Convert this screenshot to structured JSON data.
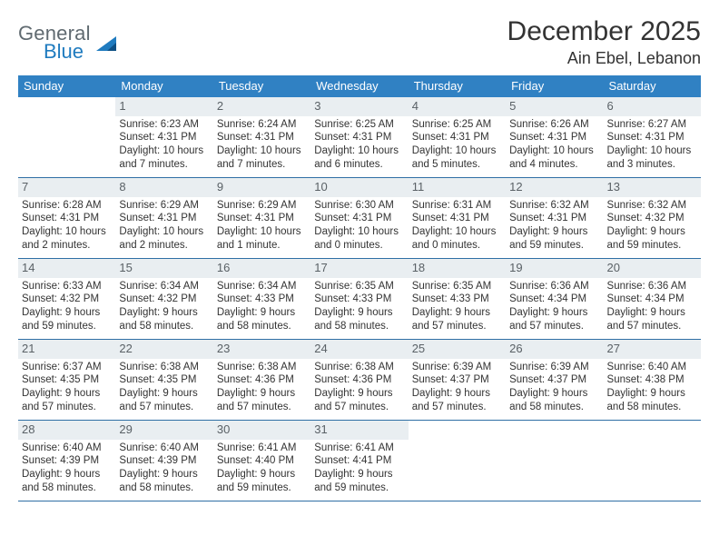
{
  "logo": {
    "text_general": "General",
    "text_blue": "Blue",
    "general_color": "#606a70",
    "blue_color": "#1f7bbf"
  },
  "title": "December 2025",
  "location": "Ain Ebel, Lebanon",
  "header_bg": "#3081c3",
  "header_fg": "#ffffff",
  "daynum_bg": "#e9eef1",
  "row_border_color": "#2f6fa5",
  "columns": [
    "Sunday",
    "Monday",
    "Tuesday",
    "Wednesday",
    "Thursday",
    "Friday",
    "Saturday"
  ],
  "weeks": [
    [
      {
        "n": "",
        "sunrise": "",
        "sunset": "",
        "daylight": ""
      },
      {
        "n": "1",
        "sunrise": "Sunrise: 6:23 AM",
        "sunset": "Sunset: 4:31 PM",
        "daylight": "Daylight: 10 hours and 7 minutes."
      },
      {
        "n": "2",
        "sunrise": "Sunrise: 6:24 AM",
        "sunset": "Sunset: 4:31 PM",
        "daylight": "Daylight: 10 hours and 7 minutes."
      },
      {
        "n": "3",
        "sunrise": "Sunrise: 6:25 AM",
        "sunset": "Sunset: 4:31 PM",
        "daylight": "Daylight: 10 hours and 6 minutes."
      },
      {
        "n": "4",
        "sunrise": "Sunrise: 6:25 AM",
        "sunset": "Sunset: 4:31 PM",
        "daylight": "Daylight: 10 hours and 5 minutes."
      },
      {
        "n": "5",
        "sunrise": "Sunrise: 6:26 AM",
        "sunset": "Sunset: 4:31 PM",
        "daylight": "Daylight: 10 hours and 4 minutes."
      },
      {
        "n": "6",
        "sunrise": "Sunrise: 6:27 AM",
        "sunset": "Sunset: 4:31 PM",
        "daylight": "Daylight: 10 hours and 3 minutes."
      }
    ],
    [
      {
        "n": "7",
        "sunrise": "Sunrise: 6:28 AM",
        "sunset": "Sunset: 4:31 PM",
        "daylight": "Daylight: 10 hours and 2 minutes."
      },
      {
        "n": "8",
        "sunrise": "Sunrise: 6:29 AM",
        "sunset": "Sunset: 4:31 PM",
        "daylight": "Daylight: 10 hours and 2 minutes."
      },
      {
        "n": "9",
        "sunrise": "Sunrise: 6:29 AM",
        "sunset": "Sunset: 4:31 PM",
        "daylight": "Daylight: 10 hours and 1 minute."
      },
      {
        "n": "10",
        "sunrise": "Sunrise: 6:30 AM",
        "sunset": "Sunset: 4:31 PM",
        "daylight": "Daylight: 10 hours and 0 minutes."
      },
      {
        "n": "11",
        "sunrise": "Sunrise: 6:31 AM",
        "sunset": "Sunset: 4:31 PM",
        "daylight": "Daylight: 10 hours and 0 minutes."
      },
      {
        "n": "12",
        "sunrise": "Sunrise: 6:32 AM",
        "sunset": "Sunset: 4:31 PM",
        "daylight": "Daylight: 9 hours and 59 minutes."
      },
      {
        "n": "13",
        "sunrise": "Sunrise: 6:32 AM",
        "sunset": "Sunset: 4:32 PM",
        "daylight": "Daylight: 9 hours and 59 minutes."
      }
    ],
    [
      {
        "n": "14",
        "sunrise": "Sunrise: 6:33 AM",
        "sunset": "Sunset: 4:32 PM",
        "daylight": "Daylight: 9 hours and 59 minutes."
      },
      {
        "n": "15",
        "sunrise": "Sunrise: 6:34 AM",
        "sunset": "Sunset: 4:32 PM",
        "daylight": "Daylight: 9 hours and 58 minutes."
      },
      {
        "n": "16",
        "sunrise": "Sunrise: 6:34 AM",
        "sunset": "Sunset: 4:33 PM",
        "daylight": "Daylight: 9 hours and 58 minutes."
      },
      {
        "n": "17",
        "sunrise": "Sunrise: 6:35 AM",
        "sunset": "Sunset: 4:33 PM",
        "daylight": "Daylight: 9 hours and 58 minutes."
      },
      {
        "n": "18",
        "sunrise": "Sunrise: 6:35 AM",
        "sunset": "Sunset: 4:33 PM",
        "daylight": "Daylight: 9 hours and 57 minutes."
      },
      {
        "n": "19",
        "sunrise": "Sunrise: 6:36 AM",
        "sunset": "Sunset: 4:34 PM",
        "daylight": "Daylight: 9 hours and 57 minutes."
      },
      {
        "n": "20",
        "sunrise": "Sunrise: 6:36 AM",
        "sunset": "Sunset: 4:34 PM",
        "daylight": "Daylight: 9 hours and 57 minutes."
      }
    ],
    [
      {
        "n": "21",
        "sunrise": "Sunrise: 6:37 AM",
        "sunset": "Sunset: 4:35 PM",
        "daylight": "Daylight: 9 hours and 57 minutes."
      },
      {
        "n": "22",
        "sunrise": "Sunrise: 6:38 AM",
        "sunset": "Sunset: 4:35 PM",
        "daylight": "Daylight: 9 hours and 57 minutes."
      },
      {
        "n": "23",
        "sunrise": "Sunrise: 6:38 AM",
        "sunset": "Sunset: 4:36 PM",
        "daylight": "Daylight: 9 hours and 57 minutes."
      },
      {
        "n": "24",
        "sunrise": "Sunrise: 6:38 AM",
        "sunset": "Sunset: 4:36 PM",
        "daylight": "Daylight: 9 hours and 57 minutes."
      },
      {
        "n": "25",
        "sunrise": "Sunrise: 6:39 AM",
        "sunset": "Sunset: 4:37 PM",
        "daylight": "Daylight: 9 hours and 57 minutes."
      },
      {
        "n": "26",
        "sunrise": "Sunrise: 6:39 AM",
        "sunset": "Sunset: 4:37 PM",
        "daylight": "Daylight: 9 hours and 58 minutes."
      },
      {
        "n": "27",
        "sunrise": "Sunrise: 6:40 AM",
        "sunset": "Sunset: 4:38 PM",
        "daylight": "Daylight: 9 hours and 58 minutes."
      }
    ],
    [
      {
        "n": "28",
        "sunrise": "Sunrise: 6:40 AM",
        "sunset": "Sunset: 4:39 PM",
        "daylight": "Daylight: 9 hours and 58 minutes."
      },
      {
        "n": "29",
        "sunrise": "Sunrise: 6:40 AM",
        "sunset": "Sunset: 4:39 PM",
        "daylight": "Daylight: 9 hours and 58 minutes."
      },
      {
        "n": "30",
        "sunrise": "Sunrise: 6:41 AM",
        "sunset": "Sunset: 4:40 PM",
        "daylight": "Daylight: 9 hours and 59 minutes."
      },
      {
        "n": "31",
        "sunrise": "Sunrise: 6:41 AM",
        "sunset": "Sunset: 4:41 PM",
        "daylight": "Daylight: 9 hours and 59 minutes."
      },
      {
        "n": "",
        "sunrise": "",
        "sunset": "",
        "daylight": ""
      },
      {
        "n": "",
        "sunrise": "",
        "sunset": "",
        "daylight": ""
      },
      {
        "n": "",
        "sunrise": "",
        "sunset": "",
        "daylight": ""
      }
    ]
  ]
}
